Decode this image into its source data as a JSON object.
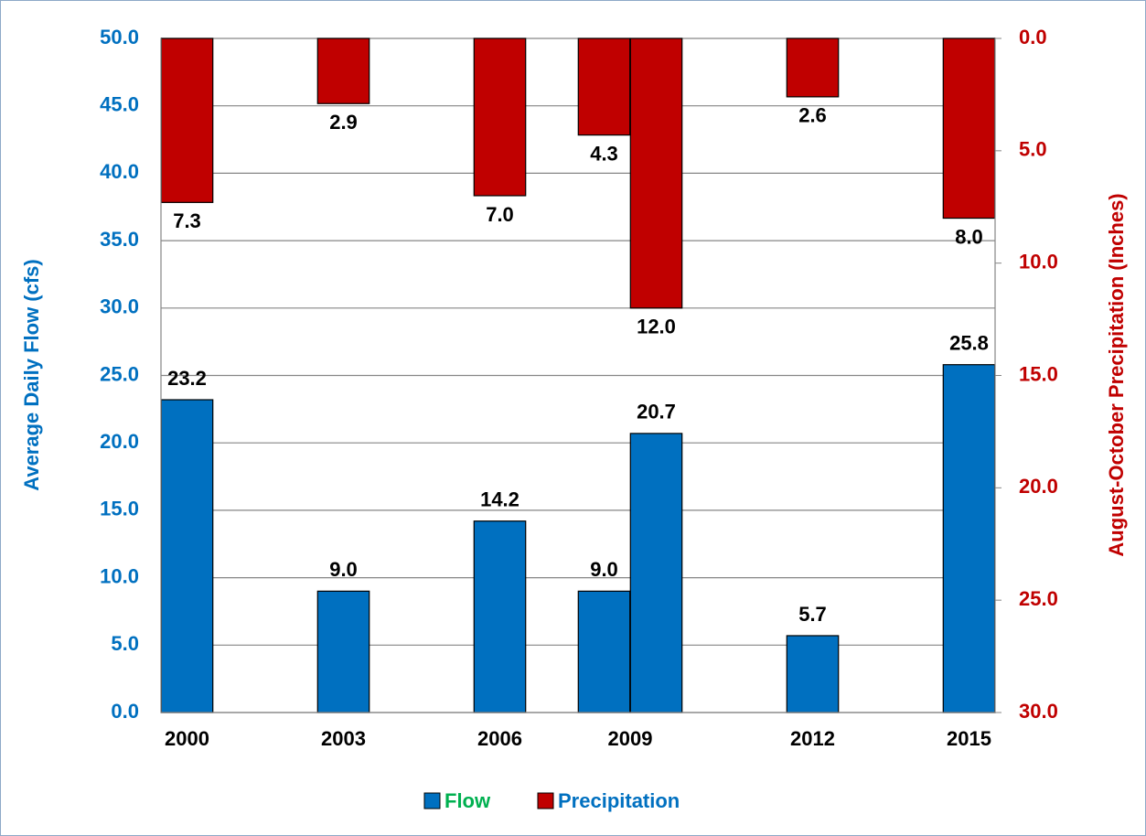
{
  "chart_data": {
    "type": "bar",
    "x": [
      2000,
      2003,
      2006,
      2008,
      2009,
      2012,
      2015
    ],
    "xlim": [
      1999.5,
      2015.5
    ],
    "xticks": [
      2000,
      2003,
      2006,
      {
        "value": 2008.5,
        "label": "2009"
      },
      2012,
      2015
    ],
    "ylabel": "Average Daily Flow (cfs)",
    "y2label": "August-October Precipitation (Inches)",
    "ylim": [
      0,
      50
    ],
    "yticks": [
      {
        "value": 0,
        "label": "0.0"
      },
      {
        "value": 5,
        "label": "5.0"
      },
      {
        "value": 10,
        "label": "10.0"
      },
      {
        "value": 15,
        "label": "15.0"
      },
      {
        "value": 20,
        "label": "20.0"
      },
      {
        "value": 25,
        "label": "25.0"
      },
      {
        "value": 30,
        "label": "30.0"
      },
      {
        "value": 35,
        "label": "35.0"
      },
      {
        "value": 40,
        "label": "40.0"
      },
      {
        "value": 45,
        "label": "45.0"
      },
      {
        "value": 50,
        "label": "50.0"
      }
    ],
    "y2lim": [
      30,
      0
    ],
    "y2ticks": [
      {
        "value": 0,
        "label": "0.0"
      },
      {
        "value": 5,
        "label": "5.0"
      },
      {
        "value": 10,
        "label": "10.0"
      },
      {
        "value": 15,
        "label": "15.0"
      },
      {
        "value": 20,
        "label": "20.0"
      },
      {
        "value": 25,
        "label": "25.0"
      },
      {
        "value": 30,
        "label": "30.0"
      }
    ],
    "grid": true,
    "legend": "bottom",
    "series": [
      {
        "name": "Flow",
        "color": "#0070c0",
        "values": [
          23.2,
          9,
          14.2,
          9,
          20.7,
          5.7,
          25.8
        ],
        "value_labels": [
          "23.2",
          "9.0",
          "14.2",
          "9.0",
          "20.7",
          "5.7",
          "25.8"
        ]
      },
      {
        "name": "Precipitation",
        "color": "#c00000",
        "axis": "y2",
        "values": [
          7.3,
          2.9,
          7,
          4.3,
          12,
          2.6,
          8
        ],
        "value_labels": [
          "7.3",
          "2.9",
          "7.0",
          "4.3",
          "12.0",
          "2.6",
          "8.0"
        ]
      }
    ]
  }
}
